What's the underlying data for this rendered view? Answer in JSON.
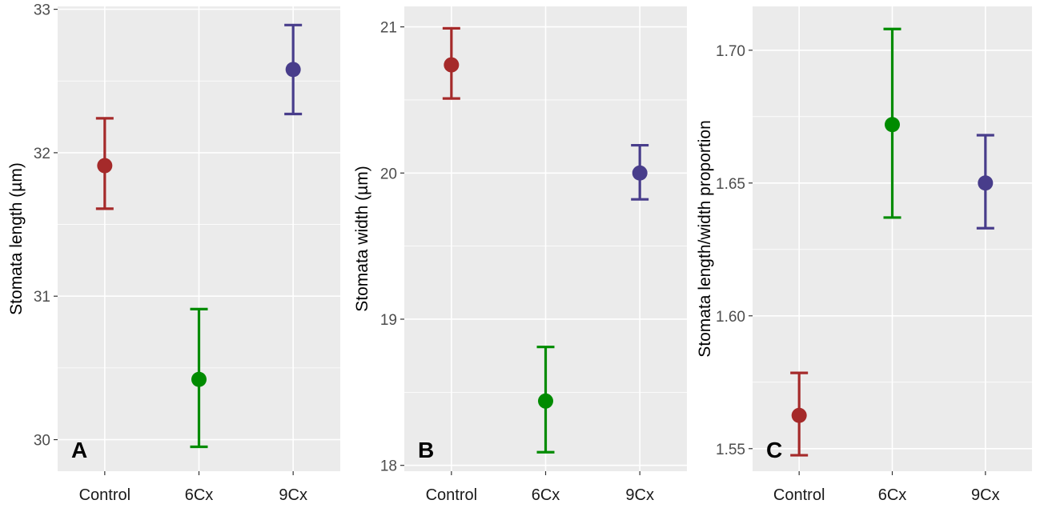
{
  "chart_data": [
    {
      "type": "scatter",
      "panel_label": "A",
      "ylabel": "Stomata length (µm)",
      "categories": [
        "Control",
        "6Cx",
        "9Cx"
      ],
      "ylim": [
        29.78,
        33.02
      ],
      "yticks": [
        30,
        31,
        32,
        33
      ],
      "y_tick_labels": [
        "30",
        "31",
        "32",
        "33"
      ],
      "grid": true,
      "points": [
        {
          "category": "Control",
          "mean": 31.91,
          "lower": 31.61,
          "upper": 32.24,
          "color": "#a52a2a"
        },
        {
          "category": "6Cx",
          "mean": 30.42,
          "lower": 29.95,
          "upper": 30.91,
          "color": "#008b00"
        },
        {
          "category": "9Cx",
          "mean": 32.58,
          "lower": 32.27,
          "upper": 32.89,
          "color": "#483d8b"
        }
      ]
    },
    {
      "type": "scatter",
      "panel_label": "B",
      "ylabel": "Stomata width (µm)",
      "categories": [
        "Control",
        "6Cx",
        "9Cx"
      ],
      "ylim": [
        17.96,
        21.14
      ],
      "yticks": [
        18,
        19,
        20,
        21
      ],
      "y_tick_labels": [
        "18",
        "19",
        "20",
        "21"
      ],
      "grid": true,
      "points": [
        {
          "category": "Control",
          "mean": 20.74,
          "lower": 20.51,
          "upper": 20.99,
          "color": "#a52a2a"
        },
        {
          "category": "6Cx",
          "mean": 18.44,
          "lower": 18.09,
          "upper": 18.81,
          "color": "#008b00"
        },
        {
          "category": "9Cx",
          "mean": 20.0,
          "lower": 19.82,
          "upper": 20.19,
          "color": "#483d8b"
        }
      ]
    },
    {
      "type": "scatter",
      "panel_label": "C",
      "ylabel": "Stomata length/width proportion",
      "categories": [
        "Control",
        "6Cx",
        "9Cx"
      ],
      "ylim": [
        1.5415,
        1.7165
      ],
      "yticks": [
        1.55,
        1.6,
        1.65,
        1.7
      ],
      "y_tick_labels": [
        "1.55",
        "1.60",
        "1.65",
        "1.70"
      ],
      "grid": true,
      "points": [
        {
          "category": "Control",
          "mean": 1.5625,
          "lower": 1.5475,
          "upper": 1.5785,
          "color": "#a52a2a"
        },
        {
          "category": "6Cx",
          "mean": 1.672,
          "lower": 1.637,
          "upper": 1.708,
          "color": "#008b00"
        },
        {
          "category": "9Cx",
          "mean": 1.65,
          "lower": 1.633,
          "upper": 1.668,
          "color": "#483d8b"
        }
      ]
    }
  ]
}
